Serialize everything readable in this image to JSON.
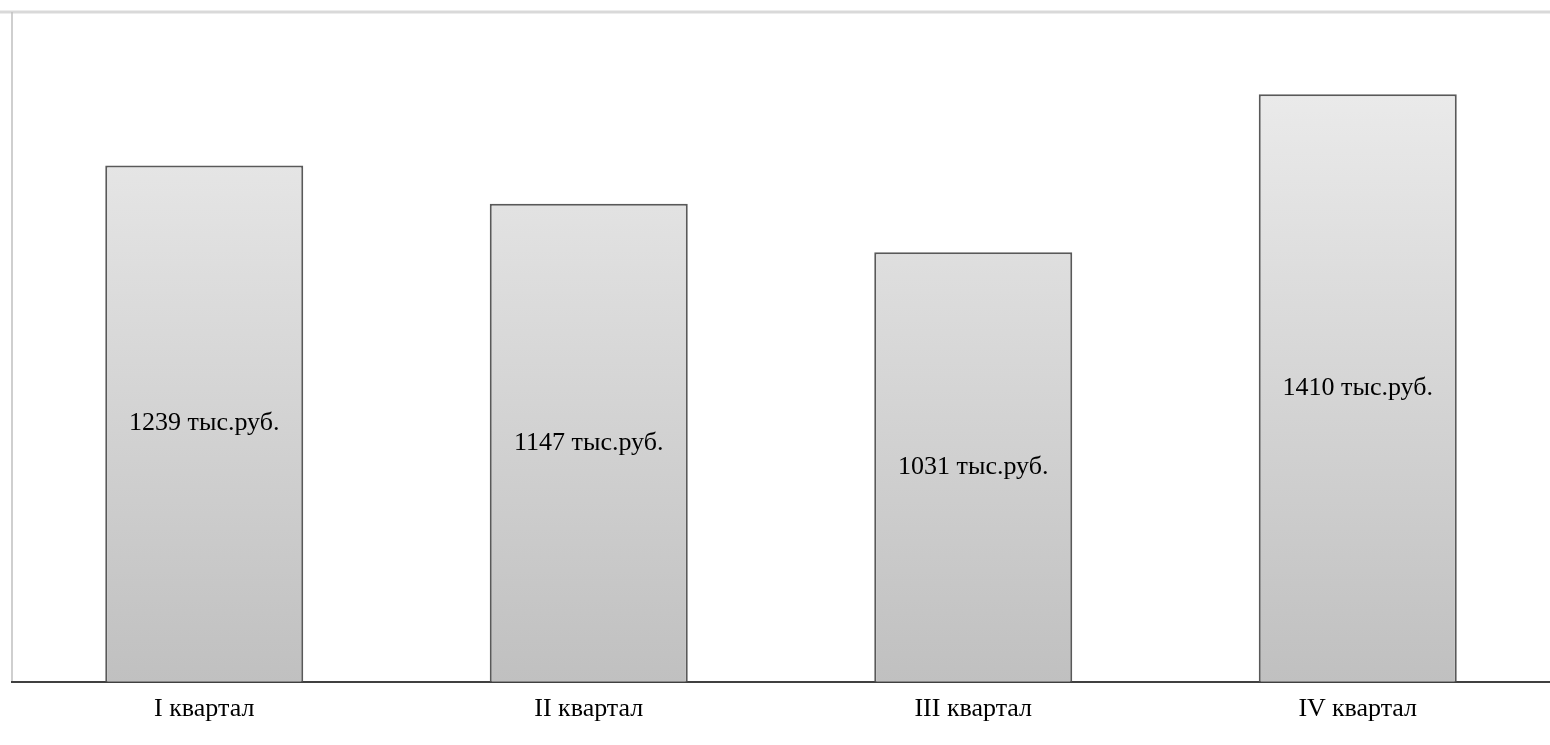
{
  "chart_data": {
    "type": "bar",
    "categories": [
      "I квартал",
      "II квартал",
      "III квартал",
      "IV квартал"
    ],
    "values": [
      1239,
      1147,
      1031,
      1410
    ],
    "value_labels": [
      "1239 тыс.руб.",
      "1147 тыс.руб.",
      "1031 тыс.руб.",
      "1410 тыс.руб."
    ],
    "color": "#c0c0c0",
    "grid": false,
    "legend": false
  }
}
